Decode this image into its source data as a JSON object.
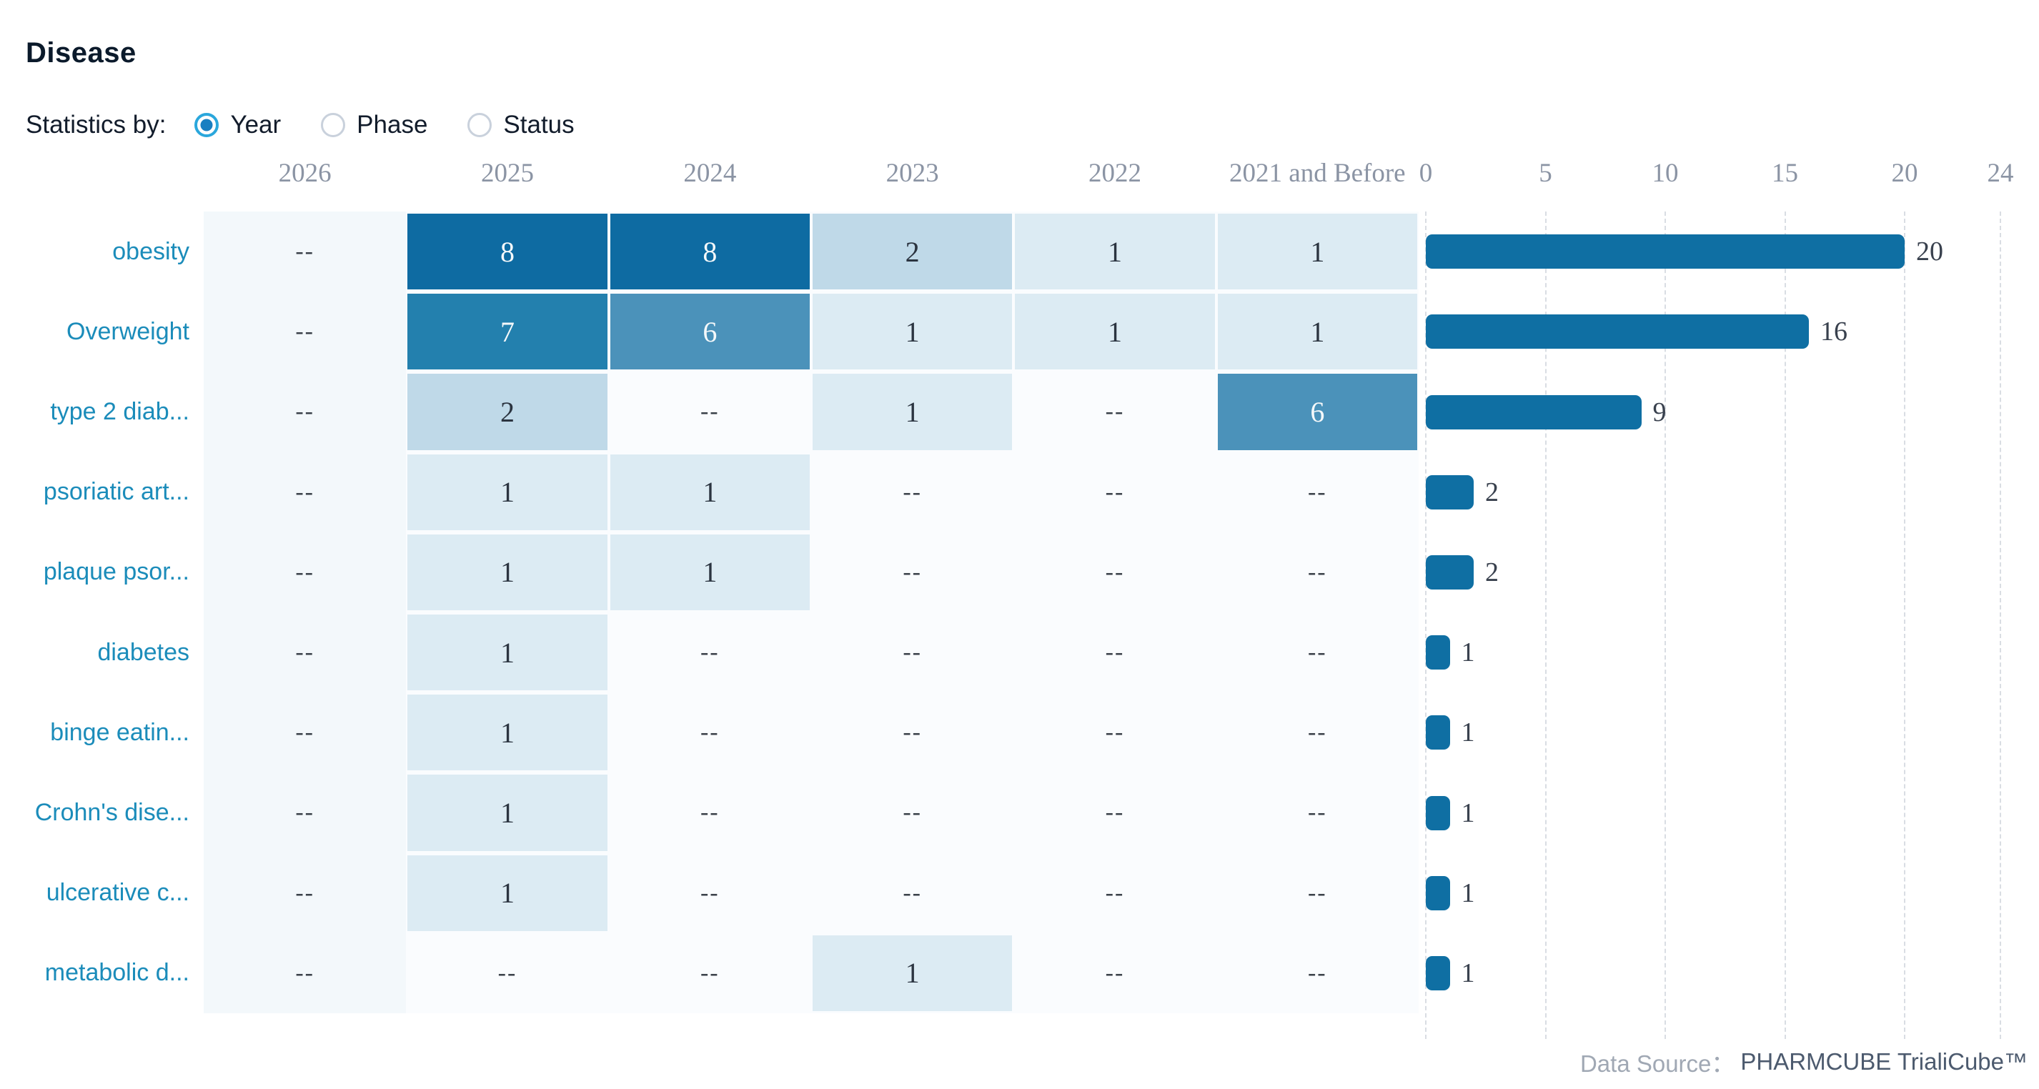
{
  "header": {
    "title": "Disease",
    "statistics_by_label": "Statistics by:",
    "options": [
      {
        "label": "Year",
        "selected": true
      },
      {
        "label": "Phase",
        "selected": false
      },
      {
        "label": "Status",
        "selected": false
      }
    ]
  },
  "table": {
    "year_columns": [
      "2026",
      "2025",
      "2024",
      "2023",
      "2022",
      "2021 and Before"
    ],
    "empty_placeholder": "--",
    "rows": [
      {
        "label": "obesity",
        "values": [
          null,
          8,
          8,
          2,
          1,
          1
        ],
        "total": 20
      },
      {
        "label": "Overweight",
        "values": [
          null,
          7,
          6,
          1,
          1,
          1
        ],
        "total": 16
      },
      {
        "label": "type 2 diab...",
        "values": [
          null,
          2,
          null,
          1,
          null,
          6
        ],
        "total": 9
      },
      {
        "label": "psoriatic art...",
        "values": [
          null,
          1,
          1,
          null,
          null,
          null
        ],
        "total": 2
      },
      {
        "label": "plaque psor...",
        "values": [
          null,
          1,
          1,
          null,
          null,
          null
        ],
        "total": 2
      },
      {
        "label": "diabetes",
        "values": [
          null,
          1,
          null,
          null,
          null,
          null
        ],
        "total": 1
      },
      {
        "label": "binge eatin...",
        "values": [
          null,
          1,
          null,
          null,
          null,
          null
        ],
        "total": 1
      },
      {
        "label": "Crohn's dise...",
        "values": [
          null,
          1,
          null,
          null,
          null,
          null
        ],
        "total": 1
      },
      {
        "label": "ulcerative c...",
        "values": [
          null,
          1,
          null,
          null,
          null,
          null
        ],
        "total": 1
      },
      {
        "label": "metabolic d...",
        "values": [
          null,
          null,
          null,
          1,
          null,
          null
        ],
        "total": 1
      }
    ]
  },
  "bar_axis": {
    "ticks": [
      0,
      5,
      10,
      15,
      20,
      24
    ],
    "max": 24
  },
  "footer": {
    "label": "Data Source：",
    "value": "PHARMCUBE TrialiCube™"
  },
  "colors": {
    "heat": {
      "1": "#dcebf3",
      "2": "#bfd9e8",
      "6": "#4b92ba",
      "7": "#2380ae",
      "8": "#0e6ba2"
    },
    "heat_text_dark": "#2b3440",
    "heat_text_light": "#f4f8fa",
    "bar": "#0f6fa3",
    "row_band": "#fafcfe",
    "first_col_band": "#f3f8fb",
    "link": "#1b8cba",
    "axis_text": "#8b94a4",
    "radio_selected_ring": "#2aa7dc",
    "radio_dot": "#1a7fc1"
  },
  "chart_data": [
    {
      "type": "heatmap",
      "title": "Disease",
      "x_categories": [
        "2026",
        "2025",
        "2024",
        "2023",
        "2022",
        "2021 and Before"
      ],
      "y_categories": [
        "obesity",
        "Overweight",
        "type 2 diab...",
        "psoriatic art...",
        "plaque psor...",
        "diabetes",
        "binge eatin...",
        "Crohn's dise...",
        "ulcerative c...",
        "metabolic d..."
      ],
      "values": [
        [
          null,
          8,
          8,
          2,
          1,
          1
        ],
        [
          null,
          7,
          6,
          1,
          1,
          1
        ],
        [
          null,
          2,
          null,
          1,
          null,
          6
        ],
        [
          null,
          1,
          1,
          null,
          null,
          null
        ],
        [
          null,
          1,
          1,
          null,
          null,
          null
        ],
        [
          null,
          1,
          null,
          null,
          null,
          null
        ],
        [
          null,
          1,
          null,
          null,
          null,
          null
        ],
        [
          null,
          1,
          null,
          null,
          null,
          null
        ],
        [
          null,
          1,
          null,
          null,
          null,
          null
        ],
        [
          null,
          null,
          null,
          1,
          null,
          null
        ]
      ],
      "null_marker": "--",
      "legend_position": "none",
      "grid": false
    },
    {
      "type": "bar",
      "orientation": "horizontal",
      "categories": [
        "obesity",
        "Overweight",
        "type 2 diab...",
        "psoriatic art...",
        "plaque psor...",
        "diabetes",
        "binge eatin...",
        "Crohn's dise...",
        "ulcerative c...",
        "metabolic d..."
      ],
      "values": [
        20,
        16,
        9,
        2,
        2,
        1,
        1,
        1,
        1,
        1
      ],
      "xlabel": "",
      "ylabel": "",
      "xlim": [
        0,
        24
      ],
      "xticks": [
        0,
        5,
        10,
        15,
        20,
        24
      ],
      "grid": true,
      "data_labels": true
    }
  ]
}
